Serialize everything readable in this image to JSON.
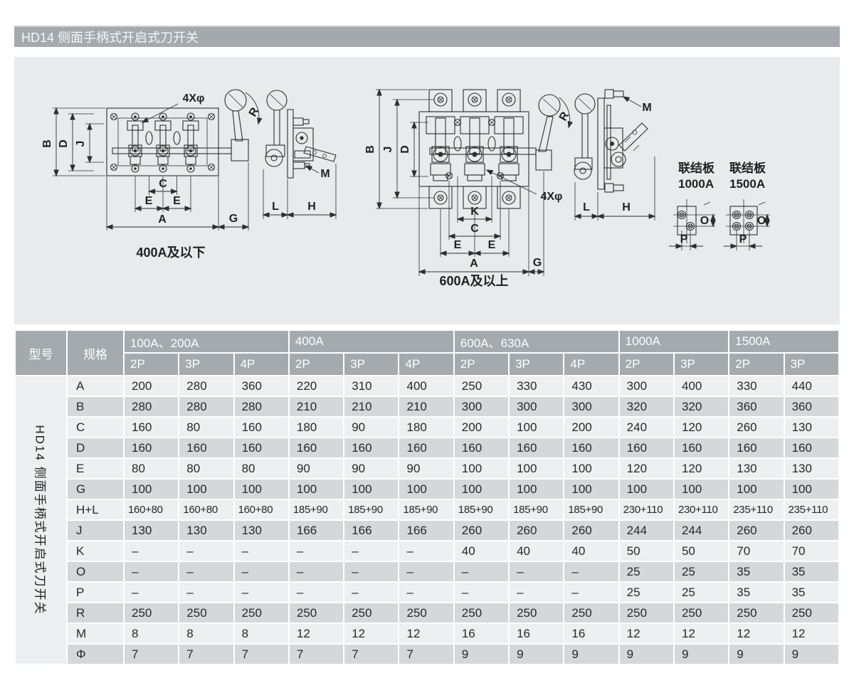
{
  "page": {
    "title": "HD14 侧面手柄式开启式刀开关"
  },
  "drawings": {
    "caption_under_400": "400A及以下",
    "caption_over_600": "600A及以上",
    "plate1000": {
      "line1": "联结板",
      "line2": "1000A"
    },
    "plate1500": {
      "line1": "联结板",
      "line2": "1500A"
    },
    "labels": {
      "holes": "4Xφ",
      "A": "A",
      "B": "B",
      "C": "C",
      "D": "D",
      "E": "E",
      "G": "G",
      "J": "J",
      "K": "K",
      "L": "L",
      "H": "H",
      "M": "M",
      "R": "R",
      "O": "O",
      "P": "P"
    }
  },
  "table": {
    "model_header": "型号",
    "spec_header": "规格",
    "model_vertical": "HD14 侧面手柄式开启式刀开关",
    "groups": [
      {
        "label": "100A、200A",
        "cols": [
          "2P",
          "3P",
          "4P"
        ]
      },
      {
        "label": "400A",
        "cols": [
          "2P",
          "3P",
          "4P"
        ]
      },
      {
        "label": "600A、630A",
        "cols": [
          "2P",
          "3P",
          "4P"
        ]
      },
      {
        "label": "1000A",
        "cols": [
          "2P",
          "3P"
        ]
      },
      {
        "label": "1500A",
        "cols": [
          "2P",
          "3P"
        ]
      }
    ],
    "rows": [
      {
        "label": "A",
        "values": [
          "200",
          "280",
          "360",
          "220",
          "310",
          "400",
          "250",
          "330",
          "430",
          "300",
          "400",
          "330",
          "440"
        ]
      },
      {
        "label": "B",
        "values": [
          "280",
          "280",
          "280",
          "210",
          "210",
          "210",
          "300",
          "300",
          "300",
          "320",
          "320",
          "360",
          "360"
        ]
      },
      {
        "label": "C",
        "values": [
          "160",
          "80",
          "160",
          "180",
          "90",
          "180",
          "200",
          "100",
          "200",
          "240",
          "120",
          "260",
          "130"
        ]
      },
      {
        "label": "D",
        "values": [
          "160",
          "160",
          "160",
          "160",
          "160",
          "160",
          "160",
          "160",
          "160",
          "160",
          "160",
          "160",
          "160"
        ]
      },
      {
        "label": "E",
        "values": [
          "80",
          "80",
          "80",
          "90",
          "90",
          "90",
          "100",
          "100",
          "100",
          "120",
          "120",
          "130",
          "130"
        ]
      },
      {
        "label": "G",
        "values": [
          "100",
          "100",
          "100",
          "100",
          "100",
          "100",
          "100",
          "100",
          "100",
          "100",
          "100",
          "100",
          "100"
        ]
      },
      {
        "label": "H+L",
        "values": [
          "160+80",
          "160+80",
          "160+80",
          "185+90",
          "185+90",
          "185+90",
          "185+90",
          "185+90",
          "185+90",
          "230+110",
          "230+110",
          "235+110",
          "235+110"
        ]
      },
      {
        "label": "J",
        "values": [
          "130",
          "130",
          "130",
          "166",
          "166",
          "166",
          "260",
          "260",
          "260",
          "244",
          "244",
          "260",
          "260"
        ]
      },
      {
        "label": "K",
        "values": [
          "–",
          "–",
          "–",
          "–",
          "–",
          "–",
          "40",
          "40",
          "40",
          "50",
          "50",
          "70",
          "70"
        ]
      },
      {
        "label": "O",
        "values": [
          "–",
          "–",
          "–",
          "–",
          "–",
          "–",
          "–",
          "–",
          "–",
          "25",
          "25",
          "35",
          "35"
        ]
      },
      {
        "label": "P",
        "values": [
          "–",
          "–",
          "–",
          "–",
          "–",
          "–",
          "–",
          "–",
          "–",
          "25",
          "25",
          "35",
          "35"
        ]
      },
      {
        "label": "R",
        "values": [
          "250",
          "250",
          "250",
          "250",
          "250",
          "250",
          "250",
          "250",
          "250",
          "250",
          "250",
          "250",
          "250"
        ]
      },
      {
        "label": "M",
        "values": [
          "8",
          "8",
          "8",
          "12",
          "12",
          "12",
          "16",
          "16",
          "16",
          "12",
          "12",
          "12",
          "12"
        ]
      },
      {
        "label": "Φ",
        "values": [
          "7",
          "7",
          "7",
          "7",
          "7",
          "7",
          "9",
          "9",
          "9",
          "9",
          "9",
          "9",
          "9"
        ]
      }
    ]
  },
  "colors": {
    "bar": "#a4a9ae",
    "header": "#a5aaaf",
    "row_light": "#edeff0",
    "row_dark": "#d5d8da",
    "panel": "#e9eaec",
    "line": "#2c2f31"
  }
}
